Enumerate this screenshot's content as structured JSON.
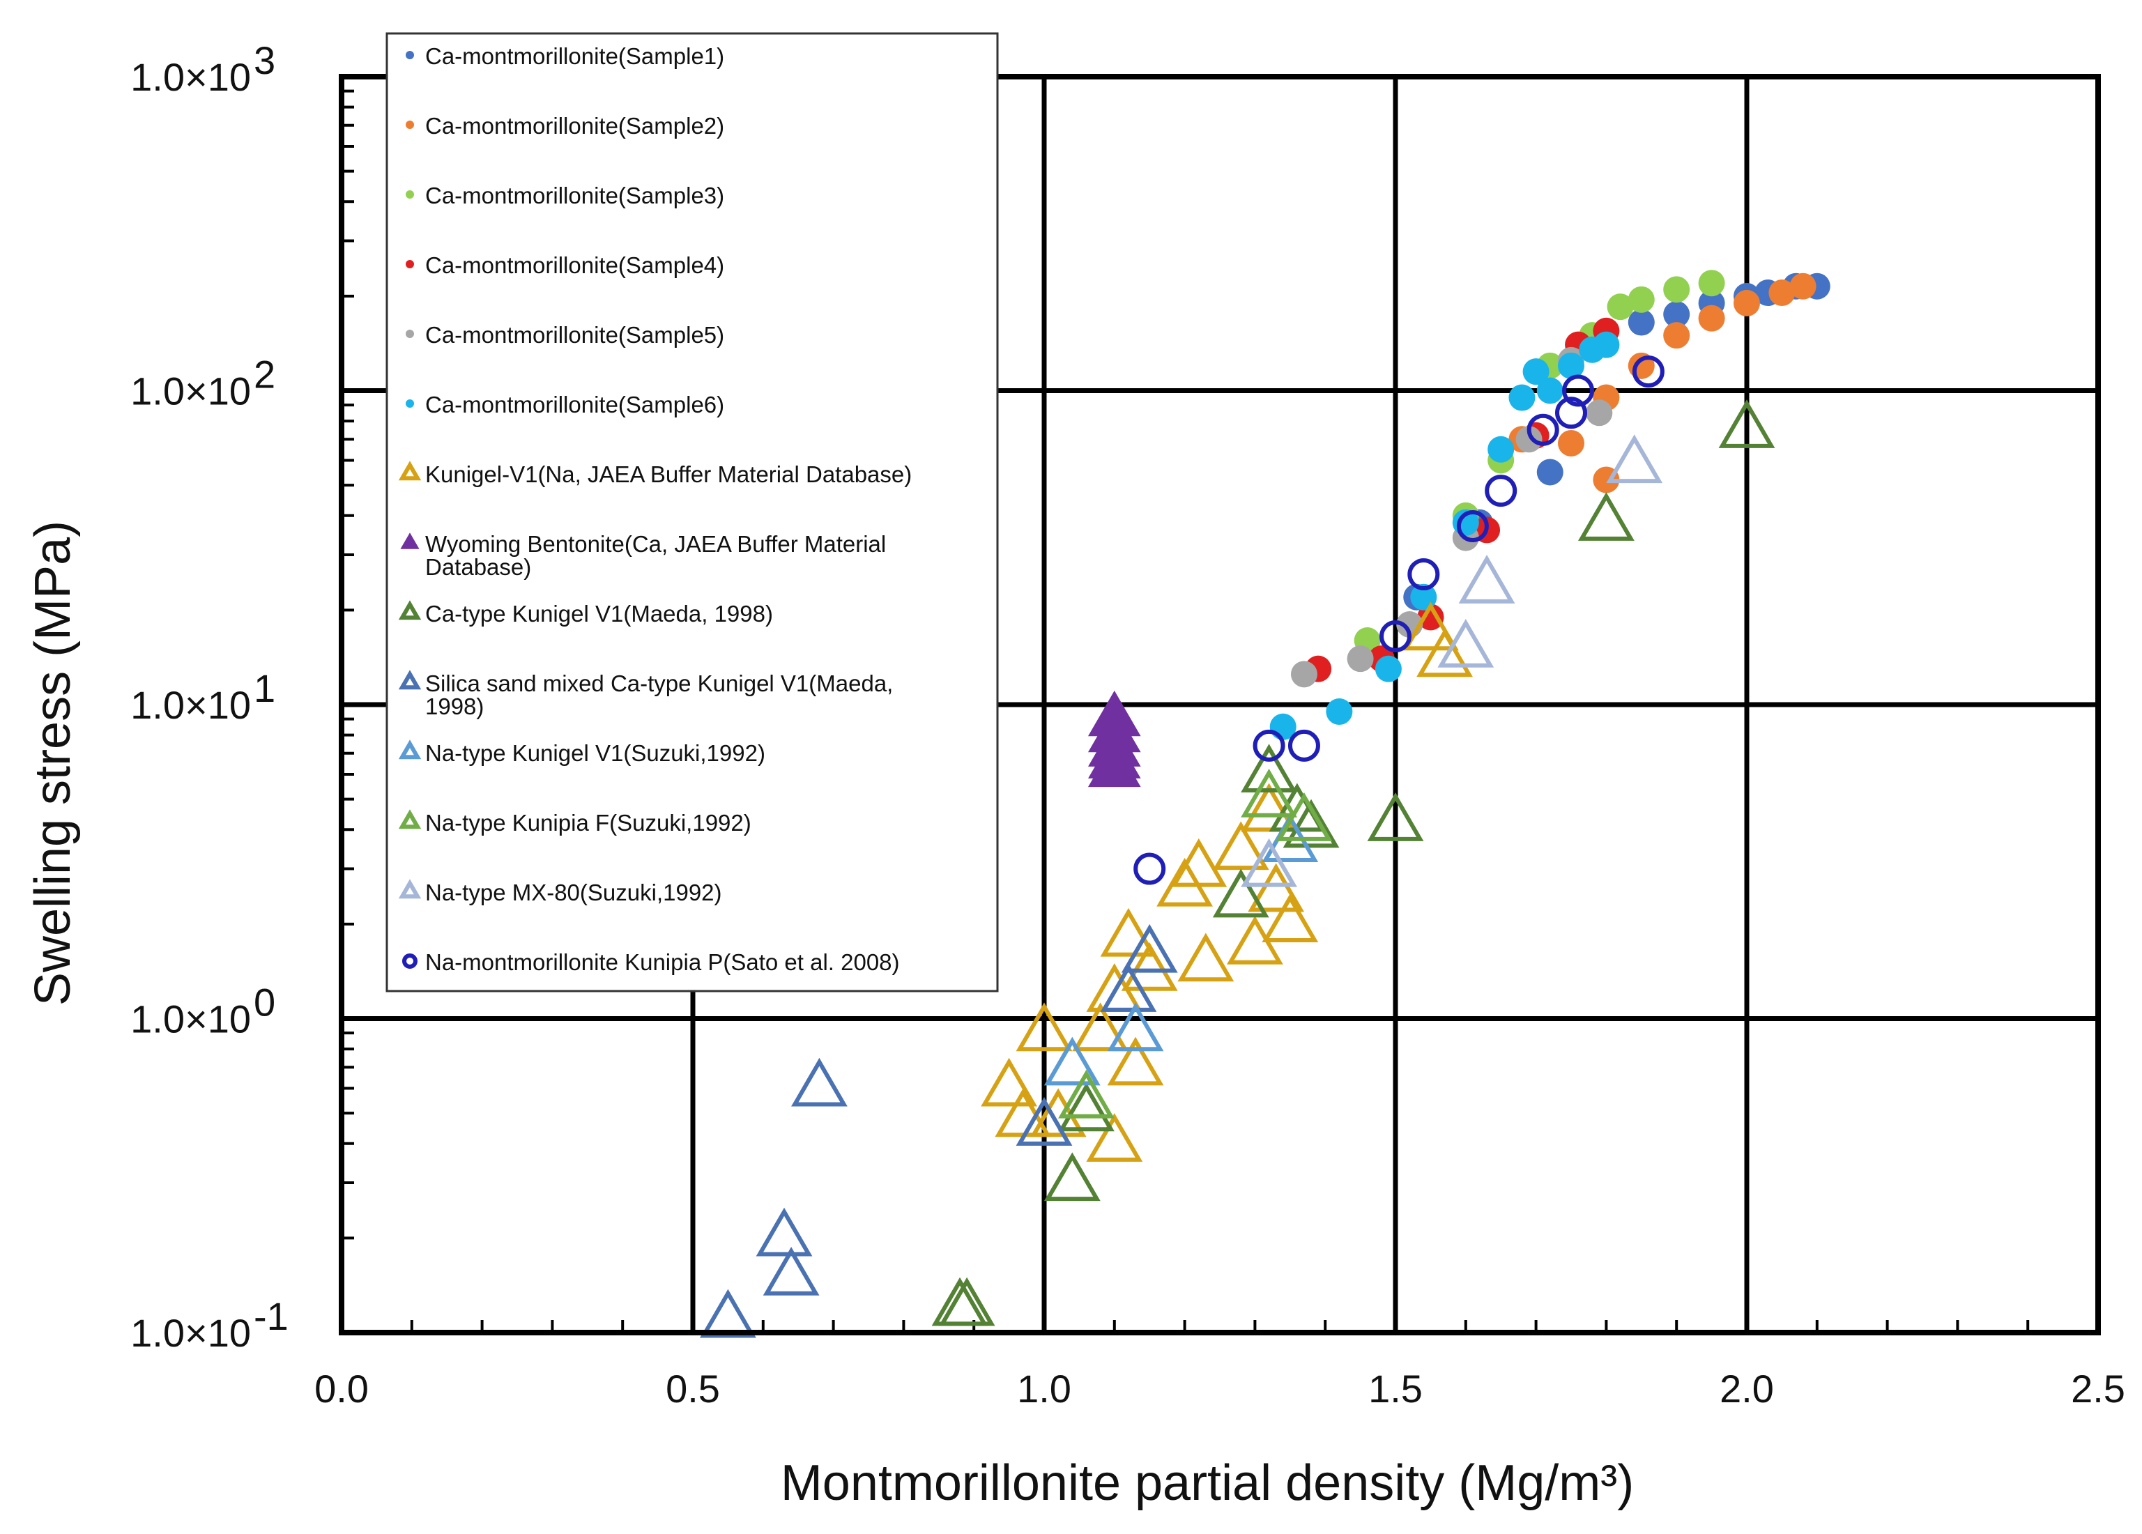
{
  "chart_data": {
    "type": "scatter",
    "title": "",
    "xlabel": "Montmorillonite partial density (Mg/m³)",
    "ylabel": "Swelling stress (MPa)",
    "xlim": [
      0.0,
      2.5
    ],
    "ylim": [
      0.1,
      1000
    ],
    "yscale": "log",
    "grid": true,
    "legend_placement": "top-left",
    "x_ticks": [
      "0.0",
      "0.5",
      "1.0",
      "1.5",
      "2.0",
      "2.5"
    ],
    "y_ticks": [
      {
        "mant": "1.0×10",
        "exp": "-1"
      },
      {
        "mant": "1.0×10",
        "exp": "0"
      },
      {
        "mant": "1.0×10",
        "exp": "1"
      },
      {
        "mant": "1.0×10",
        "exp": "2"
      },
      {
        "mant": "1.0×10",
        "exp": "3"
      }
    ],
    "series": [
      {
        "name": "Ca-montmorillonite(Sample1)",
        "marker": "dot",
        "color": "#4472c4",
        "x": [
          1.53,
          1.62,
          1.72,
          1.77,
          1.85,
          1.9,
          1.95,
          2.0,
          2.03,
          2.07,
          2.1
        ],
        "y": [
          22,
          38,
          55,
          140,
          165,
          175,
          190,
          200,
          205,
          215,
          215
        ]
      },
      {
        "name": "Ca-montmorillonite(Sample2)",
        "marker": "dot",
        "color": "#ed7d31",
        "x": [
          1.55,
          1.68,
          1.75,
          1.8,
          1.8,
          1.85,
          1.9,
          1.95,
          2.0,
          2.05,
          2.08
        ],
        "y": [
          19,
          70,
          68,
          52,
          95,
          120,
          150,
          170,
          190,
          205,
          215
        ]
      },
      {
        "name": "Ca-montmorillonite(Sample3)",
        "marker": "dot",
        "color": "#92d050",
        "x": [
          1.46,
          1.6,
          1.65,
          1.72,
          1.78,
          1.82,
          1.85,
          1.9,
          1.95
        ],
        "y": [
          16,
          40,
          60,
          120,
          150,
          185,
          195,
          210,
          220
        ]
      },
      {
        "name": "Ca-montmorillonite(Sample4)",
        "marker": "dot",
        "color": "#e02020",
        "x": [
          1.39,
          1.48,
          1.55,
          1.63,
          1.7,
          1.76,
          1.8
        ],
        "y": [
          13,
          14,
          19,
          36,
          72,
          140,
          155
        ]
      },
      {
        "name": "Ca-montmorillonite(Sample5)",
        "marker": "dot",
        "color": "#a6a6a6",
        "x": [
          1.37,
          1.45,
          1.52,
          1.6,
          1.69,
          1.75,
          1.79
        ],
        "y": [
          12.5,
          14,
          18,
          34,
          70,
          125,
          85
        ]
      },
      {
        "name": "Ca-montmorillonite(Sample6)",
        "marker": "dot",
        "color": "#19b4ea",
        "x": [
          1.34,
          1.42,
          1.49,
          1.54,
          1.6,
          1.65,
          1.68,
          1.7,
          1.72,
          1.75,
          1.78,
          1.8
        ],
        "y": [
          8.5,
          9.5,
          13,
          22,
          38,
          65,
          95,
          115,
          100,
          120,
          135,
          140
        ]
      },
      {
        "name": "Kunigel-V1(Na, JAEA Buffer Material Database)",
        "marker": "triangle",
        "color": "#d6a214",
        "x": [
          0.95,
          0.97,
          1.0,
          1.02,
          1.08,
          1.1,
          1.1,
          1.12,
          1.13,
          1.15,
          1.2,
          1.22,
          1.23,
          1.28,
          1.3,
          1.32,
          1.33,
          1.35,
          1.55,
          1.57
        ],
        "y": [
          0.6,
          0.48,
          0.9,
          0.48,
          0.9,
          0.4,
          1.2,
          1.8,
          0.7,
          1.4,
          2.6,
          3.0,
          1.5,
          3.4,
          1.7,
          4.5,
          2.5,
          2.0,
          17,
          14
        ]
      },
      {
        "name": "Wyoming Bentonite(Ca, JAEA Buffer Material Database)",
        "marker": "triangle-filled",
        "color": "#7030a0",
        "x": [
          1.1,
          1.1,
          1.1,
          1.1,
          1.1
        ],
        "y": [
          9,
          8,
          7.2,
          6.6,
          6.2
        ]
      },
      {
        "name": "Ca-type Kunigel V1(Maeda, 1998)",
        "marker": "triangle",
        "color": "#548235",
        "x": [
          0.88,
          0.89,
          1.04,
          1.06,
          1.28,
          1.32,
          1.36,
          1.38,
          1.5,
          1.8,
          2.0
        ],
        "y": [
          0.12,
          0.12,
          0.3,
          0.5,
          2.4,
          6,
          4.5,
          4.0,
          4.2,
          38,
          75
        ]
      },
      {
        "name": "Silica sand mixed Ca-type Kunigel V1(Maeda, 1998)",
        "marker": "triangle",
        "color": "#4a72b2",
        "x": [
          0.55,
          0.63,
          0.64,
          0.68,
          1.0,
          1.12,
          1.15
        ],
        "y": [
          0.11,
          0.2,
          0.15,
          0.6,
          0.45,
          1.2,
          1.6
        ]
      },
      {
        "name": "Na-type Kunigel V1(Suzuki,1992)",
        "marker": "triangle",
        "color": "#5b9bd5",
        "x": [
          1.04,
          1.13,
          1.35
        ],
        "y": [
          0.7,
          0.9,
          3.6
        ]
      },
      {
        "name": "Na-type Kunipia F(Suzuki,1992)",
        "marker": "triangle",
        "color": "#70ad47",
        "x": [
          1.06,
          1.32,
          1.37
        ],
        "y": [
          0.55,
          5.0,
          4.2
        ]
      },
      {
        "name": "Na-type MX-80(Suzuki,1992)",
        "marker": "triangle",
        "color": "#a5b6d8",
        "x": [
          1.32,
          1.6,
          1.63,
          1.84
        ],
        "y": [
          3.0,
          15,
          24,
          58
        ]
      },
      {
        "name": "Na-montmorillonite Kunipia P(Sato et al. 2008)",
        "marker": "circle-open",
        "color": "#1f1fb8",
        "x": [
          1.15,
          1.32,
          1.37,
          1.5,
          1.54,
          1.61,
          1.65,
          1.71,
          1.75,
          1.76,
          1.86
        ],
        "y": [
          3.0,
          7.4,
          7.4,
          16.5,
          26,
          37,
          48,
          75,
          85,
          100,
          115
        ]
      }
    ]
  }
}
